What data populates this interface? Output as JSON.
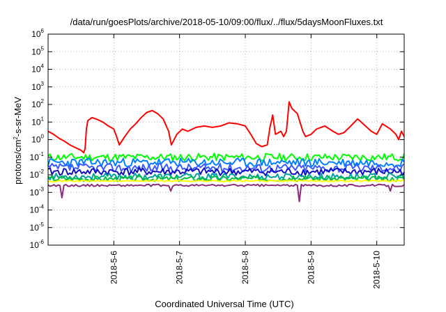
{
  "chart_data": {
    "type": "line",
    "title": "/data/run/goesPlots/archive/2018-05-10/09:00/flux/../flux/5daysMoonFluxes.txt",
    "xlabel": "Coordinated Universal Time (UTC)",
    "ylabel": {
      "prefix": "protons/cm",
      "superscript": "2",
      "suffix": "-s-sr-MeV"
    },
    "y_scale": "log",
    "ylim_exponents": [
      -6,
      6
    ],
    "y_ticks": [
      {
        "base": "10",
        "exp": "-6"
      },
      {
        "base": "10",
        "exp": "-5"
      },
      {
        "base": "10",
        "exp": "-4"
      },
      {
        "base": "10",
        "exp": "-3"
      },
      {
        "base": "10",
        "exp": "-2"
      },
      {
        "base": "10",
        "exp": "-1"
      },
      {
        "base": "10",
        "exp": "0"
      },
      {
        "base": "10",
        "exp": "1"
      },
      {
        "base": "10",
        "exp": "2"
      },
      {
        "base": "10",
        "exp": "3"
      },
      {
        "base": "10",
        "exp": "4"
      },
      {
        "base": "10",
        "exp": "5"
      },
      {
        "base": "10",
        "exp": "6"
      }
    ],
    "x_axis": "date",
    "xlim": [
      "2018-05-05T00:00",
      "2018-05-10T10:00"
    ],
    "x_ticks": [
      "2018-5-6",
      "2018-5-7",
      "2018-5-8",
      "2018-5-9",
      "2018-5-10"
    ],
    "grid": true,
    "series": [
      {
        "color": "#ff0000",
        "points": [
          [
            "2018-05-05T00:00",
            3
          ],
          [
            "2018-05-05T02:00",
            2
          ],
          [
            "2018-05-05T04:00",
            1.2
          ],
          [
            "2018-05-05T06:00",
            0.8
          ],
          [
            "2018-05-05T08:00",
            0.5
          ],
          [
            "2018-05-05T10:00",
            0.35
          ],
          [
            "2018-05-05T12:00",
            0.25
          ],
          [
            "2018-05-05T13:00",
            0.18
          ],
          [
            "2018-05-05T13:30",
            0.3
          ],
          [
            "2018-05-05T14:00",
            4
          ],
          [
            "2018-05-05T14:30",
            12
          ],
          [
            "2018-05-05T16:00",
            18
          ],
          [
            "2018-05-05T18:00",
            14
          ],
          [
            "2018-05-05T20:00",
            10
          ],
          [
            "2018-05-05T22:00",
            6
          ],
          [
            "2018-05-06T00:00",
            4
          ],
          [
            "2018-05-06T01:00",
            1.5
          ],
          [
            "2018-05-06T02:00",
            0.5
          ],
          [
            "2018-05-06T04:00",
            1.5
          ],
          [
            "2018-05-06T06:00",
            4
          ],
          [
            "2018-05-06T08:00",
            8
          ],
          [
            "2018-05-06T10:00",
            18
          ],
          [
            "2018-05-06T12:00",
            35
          ],
          [
            "2018-05-06T14:00",
            45
          ],
          [
            "2018-05-06T16:00",
            30
          ],
          [
            "2018-05-06T18:00",
            15
          ],
          [
            "2018-05-06T20:00",
            3
          ],
          [
            "2018-05-06T21:00",
            0.5
          ],
          [
            "2018-05-06T23:00",
            2
          ],
          [
            "2018-05-07T01:00",
            4
          ],
          [
            "2018-05-07T03:00",
            3
          ],
          [
            "2018-05-07T06:00",
            5
          ],
          [
            "2018-05-07T09:00",
            6
          ],
          [
            "2018-05-07T12:00",
            5
          ],
          [
            "2018-05-07T15:00",
            6
          ],
          [
            "2018-05-07T18:00",
            9
          ],
          [
            "2018-05-07T21:00",
            8
          ],
          [
            "2018-05-08T00:00",
            6
          ],
          [
            "2018-05-08T02:00",
            2
          ],
          [
            "2018-05-08T04:00",
            0.6
          ],
          [
            "2018-05-08T06:00",
            0.4
          ],
          [
            "2018-05-08T08:00",
            0.5
          ],
          [
            "2018-05-08T09:00",
            5
          ],
          [
            "2018-05-08T10:00",
            25
          ],
          [
            "2018-05-08T11:00",
            2
          ],
          [
            "2018-05-08T13:00",
            3
          ],
          [
            "2018-05-08T14:00",
            1.5
          ],
          [
            "2018-05-08T15:00",
            3
          ],
          [
            "2018-05-08T16:00",
            140
          ],
          [
            "2018-05-08T17:00",
            60
          ],
          [
            "2018-05-08T19:00",
            30
          ],
          [
            "2018-05-08T21:00",
            3
          ],
          [
            "2018-05-08T22:00",
            1.5
          ],
          [
            "2018-05-09T00:00",
            2
          ],
          [
            "2018-05-09T02:00",
            4
          ],
          [
            "2018-05-09T05:00",
            6
          ],
          [
            "2018-05-09T08:00",
            3
          ],
          [
            "2018-05-09T10:00",
            2
          ],
          [
            "2018-05-09T12:00",
            2.5
          ],
          [
            "2018-05-09T14:00",
            5
          ],
          [
            "2018-05-09T17:00",
            15
          ],
          [
            "2018-05-09T19:00",
            8
          ],
          [
            "2018-05-09T22:00",
            3
          ],
          [
            "2018-05-10T00:00",
            2
          ],
          [
            "2018-05-10T02:00",
            8
          ],
          [
            "2018-05-10T05:00",
            4
          ],
          [
            "2018-05-10T07:00",
            2
          ],
          [
            "2018-05-10T08:00",
            1
          ],
          [
            "2018-05-10T09:00",
            3
          ],
          [
            "2018-05-10T10:00",
            1.5
          ]
        ]
      },
      {
        "color": "#00ff00",
        "level": 0.1,
        "spread": 0.22,
        "seed": 11
      },
      {
        "color": "#0080ff",
        "level": 0.05,
        "spread": 0.25,
        "seed": 23
      },
      {
        "color": "#3b5bff",
        "level": 0.025,
        "spread": 0.25,
        "seed": 37
      },
      {
        "color": "#1010c0",
        "level": 0.015,
        "spread": 0.22,
        "seed": 41
      },
      {
        "color": "#00a0a0",
        "level": 0.008,
        "spread": 0.18,
        "seed": 53
      },
      {
        "color": "#00c040",
        "level": 0.006,
        "spread": 0.15,
        "seed": 67
      },
      {
        "color": "#ffff00",
        "level": 0.0045,
        "spread": 0.04,
        "seed": 71
      },
      {
        "color": "#8b2b7a",
        "level": 0.0025,
        "spread": 0.06,
        "seed": 89,
        "dips": [
          [
            "2018-05-05T05:00",
            0.0005
          ],
          [
            "2018-05-06T20:30",
            0.0012
          ],
          [
            "2018-05-08T19:30",
            0.0003
          ],
          [
            "2018-05-10T05:00",
            0.0012
          ]
        ]
      }
    ]
  }
}
